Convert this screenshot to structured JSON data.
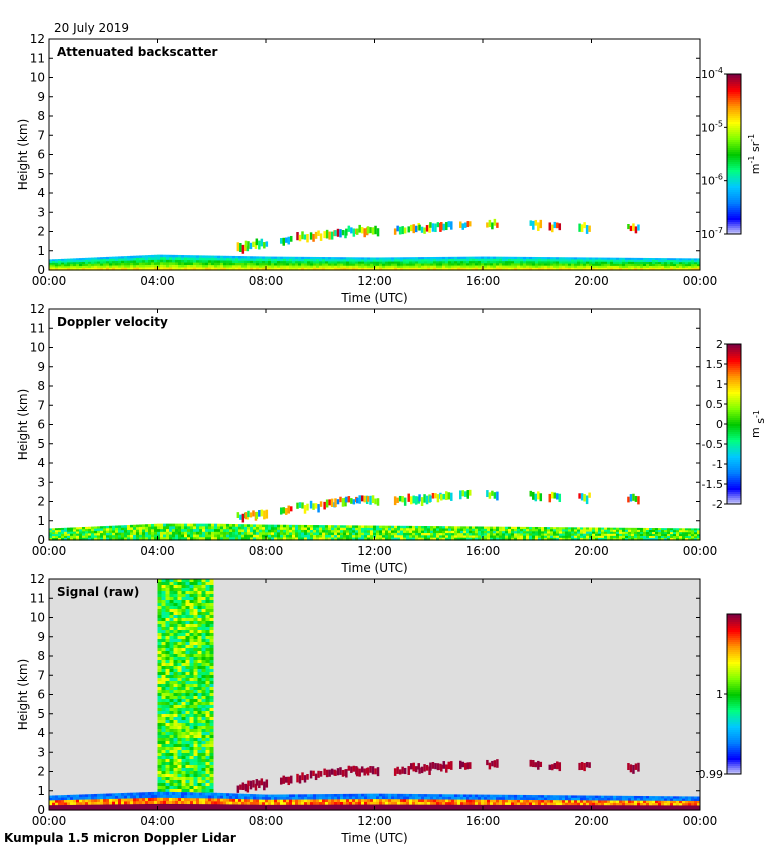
{
  "date_label": "20 July 2019",
  "footer_label": "Kumpula 1.5 micron Doppler Lidar",
  "chart_data": [
    {
      "type": "heatmap",
      "title": "Attenuated backscatter",
      "xlabel": "Time (UTC)",
      "ylabel": "Height (km)",
      "xlim_hours": [
        0,
        24
      ],
      "ylim": [
        0,
        12
      ],
      "x_ticks": [
        "00:00",
        "04:00",
        "08:00",
        "12:00",
        "16:00",
        "20:00",
        "00:00"
      ],
      "y_ticks": [
        "0",
        "1",
        "2",
        "3",
        "4",
        "5",
        "6",
        "7",
        "8",
        "9",
        "10",
        "11",
        "12"
      ],
      "background": "#ffffff",
      "grid": false,
      "colorbar": {
        "scale": "log",
        "range": [
          1e-07,
          0.0001
        ],
        "tick_labels": [
          {
            "base": "10",
            "exp": "-4",
            "value": 0.0001
          },
          {
            "base": "10",
            "exp": "-5",
            "value": 1e-05
          },
          {
            "base": "10",
            "exp": "-6",
            "value": 1e-06
          },
          {
            "base": "10",
            "exp": "-7",
            "value": 1e-07
          }
        ],
        "unit": {
          "a": "m",
          "a_exp": "-1",
          "b": " sr",
          "b_exp": "-1"
        }
      },
      "boundary_layer": {
        "description_hours": [
          0,
          24
        ],
        "top_km": [
          [
            0,
            0.55
          ],
          [
            4,
            0.8
          ],
          [
            6,
            0.75
          ],
          [
            8,
            0.7
          ],
          [
            12,
            0.65
          ],
          [
            16,
            0.7
          ],
          [
            20,
            0.65
          ],
          [
            24,
            0.6
          ]
        ]
      },
      "cloud_cells": [
        [
          7.1,
          1.25
        ],
        [
          7.4,
          1.35
        ],
        [
          7.8,
          1.45
        ],
        [
          8.7,
          1.65
        ],
        [
          9.3,
          1.8
        ],
        [
          9.8,
          1.85
        ],
        [
          10.3,
          1.95
        ],
        [
          10.7,
          2.05
        ],
        [
          11.1,
          2.1
        ],
        [
          11.5,
          2.15
        ],
        [
          11.9,
          2.15
        ],
        [
          12.9,
          2.1
        ],
        [
          13.4,
          2.25
        ],
        [
          13.8,
          2.2
        ],
        [
          14.2,
          2.3
        ],
        [
          14.6,
          2.35
        ],
        [
          15.3,
          2.4
        ],
        [
          16.3,
          2.45
        ],
        [
          17.9,
          2.4
        ],
        [
          18.6,
          2.35
        ],
        [
          19.7,
          2.3
        ],
        [
          21.5,
          2.25
        ]
      ]
    },
    {
      "type": "heatmap",
      "title": "Doppler velocity",
      "xlabel": "Time (UTC)",
      "ylabel": "Height (km)",
      "xlim_hours": [
        0,
        24
      ],
      "ylim": [
        0,
        12
      ],
      "x_ticks": [
        "00:00",
        "04:00",
        "08:00",
        "12:00",
        "16:00",
        "20:00",
        "00:00"
      ],
      "y_ticks": [
        "0",
        "1",
        "2",
        "3",
        "4",
        "5",
        "6",
        "7",
        "8",
        "9",
        "10",
        "11",
        "12"
      ],
      "background": "#ffffff",
      "grid": false,
      "colorbar": {
        "scale": "linear",
        "range": [
          -2,
          2
        ],
        "tick_labels": [
          "2",
          "1.5",
          "1",
          "0.5",
          "0",
          "-0.5",
          "-1",
          "-1.5",
          "-2"
        ],
        "unit": {
          "a": "m",
          "a_exp": "",
          "b": " s",
          "b_exp": "-1"
        }
      },
      "boundary_layer": {
        "top_km": [
          [
            0,
            0.6
          ],
          [
            4,
            0.85
          ],
          [
            6,
            0.85
          ],
          [
            8,
            0.8
          ],
          [
            12,
            0.75
          ],
          [
            16,
            0.7
          ],
          [
            20,
            0.65
          ],
          [
            24,
            0.6
          ]
        ]
      },
      "cloud_cells": [
        [
          7.1,
          1.25
        ],
        [
          7.4,
          1.35
        ],
        [
          7.8,
          1.45
        ],
        [
          8.7,
          1.65
        ],
        [
          9.3,
          1.8
        ],
        [
          9.8,
          1.85
        ],
        [
          10.3,
          1.95
        ],
        [
          10.7,
          2.05
        ],
        [
          11.1,
          2.1
        ],
        [
          11.5,
          2.15
        ],
        [
          11.9,
          2.15
        ],
        [
          12.9,
          2.1
        ],
        [
          13.4,
          2.25
        ],
        [
          13.8,
          2.2
        ],
        [
          14.2,
          2.3
        ],
        [
          14.6,
          2.35
        ],
        [
          15.3,
          2.4
        ],
        [
          16.3,
          2.45
        ],
        [
          17.9,
          2.4
        ],
        [
          18.6,
          2.35
        ],
        [
          19.7,
          2.3
        ],
        [
          21.5,
          2.25
        ]
      ]
    },
    {
      "type": "heatmap",
      "title": "Signal (raw)",
      "xlabel": "Time (UTC)",
      "ylabel": "Height (km)",
      "xlim_hours": [
        0,
        24
      ],
      "ylim": [
        0,
        12
      ],
      "x_ticks": [
        "00:00",
        "04:00",
        "08:00",
        "12:00",
        "16:00",
        "20:00",
        "00:00"
      ],
      "y_ticks": [
        "0",
        "1",
        "2",
        "3",
        "4",
        "5",
        "6",
        "7",
        "8",
        "9",
        "10",
        "11",
        "12"
      ],
      "background": "#dedede",
      "grid": false,
      "colorbar": {
        "scale": "linear",
        "range": [
          0.99,
          1.01
        ],
        "tick_labels": [
          "1",
          "0.99"
        ],
        "tick_values": [
          1,
          0.99
        ],
        "unit": {
          "a": "",
          "a_exp": "",
          "b": "",
          "b_exp": ""
        }
      },
      "noise_column_hours": [
        4.0,
        6.0
      ],
      "boundary_layer": {
        "top_km": [
          [
            0,
            0.75
          ],
          [
            4,
            0.95
          ],
          [
            6,
            0.9
          ],
          [
            8,
            0.8
          ],
          [
            12,
            0.85
          ],
          [
            16,
            0.8
          ],
          [
            20,
            0.75
          ],
          [
            24,
            0.7
          ]
        ]
      },
      "cloud_cells": [
        [
          7.1,
          1.25
        ],
        [
          7.4,
          1.35
        ],
        [
          7.8,
          1.45
        ],
        [
          8.7,
          1.65
        ],
        [
          9.3,
          1.8
        ],
        [
          9.8,
          1.85
        ],
        [
          10.3,
          1.95
        ],
        [
          10.7,
          2.05
        ],
        [
          11.1,
          2.1
        ],
        [
          11.5,
          2.15
        ],
        [
          11.9,
          2.15
        ],
        [
          12.9,
          2.1
        ],
        [
          13.4,
          2.25
        ],
        [
          13.8,
          2.2
        ],
        [
          14.2,
          2.3
        ],
        [
          14.6,
          2.35
        ],
        [
          15.3,
          2.4
        ],
        [
          16.3,
          2.45
        ],
        [
          17.9,
          2.4
        ],
        [
          18.6,
          2.35
        ],
        [
          19.7,
          2.3
        ],
        [
          21.5,
          2.25
        ]
      ]
    }
  ]
}
